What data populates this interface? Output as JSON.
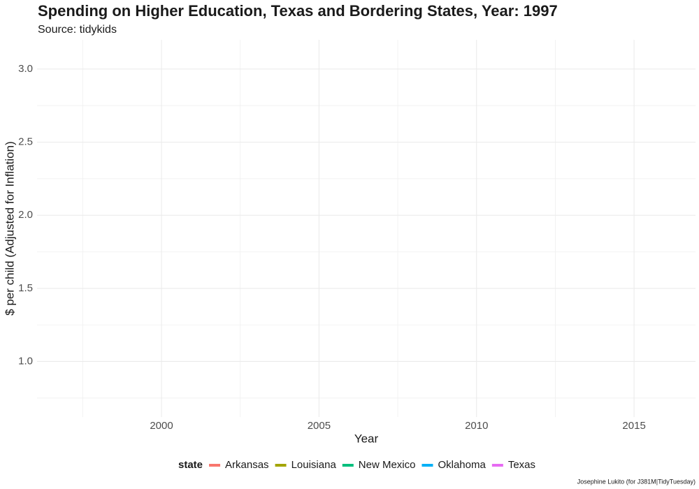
{
  "chart_data": {
    "type": "line",
    "title": "Spending on Higher Education, Texas and Bordering States, Year: 1997",
    "subtitle": "Source: tidykids",
    "caption": "Josephine Lukito (for J381M|TidyTuesday)",
    "x_label": "Year",
    "y_label": "$ per child (Adjusted for Inflation)",
    "x": [],
    "series": [
      {
        "name": "Arkansas",
        "color": "#f8766d",
        "values": []
      },
      {
        "name": "Louisiana",
        "color": "#a3a500",
        "values": []
      },
      {
        "name": "New Mexico",
        "color": "#00bf7d",
        "values": []
      },
      {
        "name": "Oklahoma",
        "color": "#00b0f6",
        "values": []
      },
      {
        "name": "Texas",
        "color": "#e76bf3",
        "values": []
      }
    ],
    "legend_title": "state",
    "legend_position": "bottom",
    "xlim": [
      1996.05,
      2016.95
    ],
    "xticks": [
      2000,
      2005,
      2010,
      2015
    ],
    "ylim": [
      0.62,
      3.2
    ],
    "yticks": [
      {
        "value": 1,
        "label": "1.0"
      },
      {
        "value": 1.5,
        "label": "1.5"
      },
      {
        "value": 2,
        "label": "2.0"
      },
      {
        "value": 2.5,
        "label": "2.5"
      },
      {
        "value": 3,
        "label": "3.0"
      }
    ],
    "grid": true
  }
}
